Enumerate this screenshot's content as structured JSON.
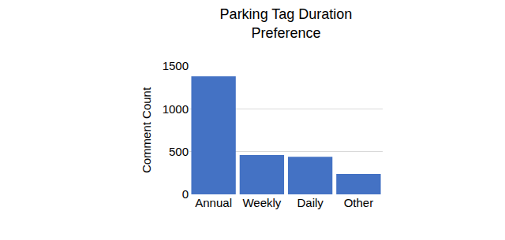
{
  "chart_data": {
    "type": "bar",
    "title": "Parking Tag Duration Preference",
    "y_label": "Comment Count",
    "categories": [
      "Annual",
      "Weekly",
      "Daily",
      "Other"
    ],
    "values": [
      1380,
      460,
      440,
      240
    ],
    "color": "#4472c4",
    "ylim": [
      0,
      1500
    ],
    "yticks": [
      0,
      500,
      1000,
      1500
    ],
    "grid": true
  }
}
